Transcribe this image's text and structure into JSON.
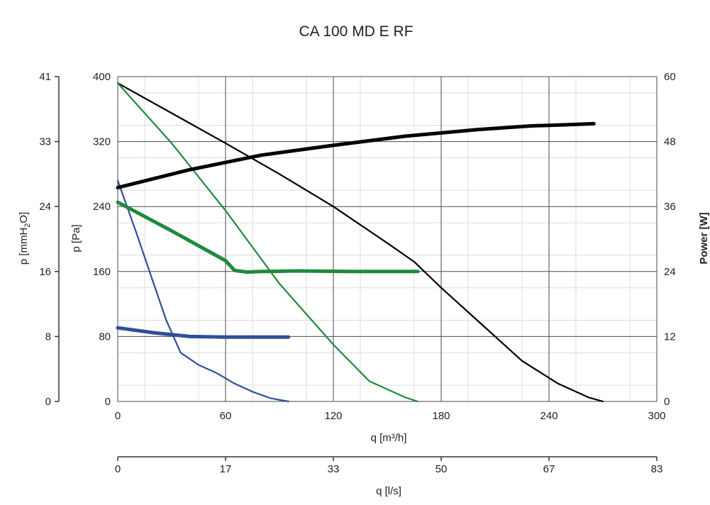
{
  "chart_data": {
    "type": "line",
    "title": "CA 100 MD E RF",
    "grid": true,
    "x_axis": {
      "label": "q [m³/h]",
      "range": [
        0,
        300
      ],
      "ticks": [
        "0",
        "60",
        "120",
        "180",
        "240",
        "300"
      ]
    },
    "x2_axis": {
      "label": "q [l/s]",
      "ticks": [
        "0",
        "17",
        "33",
        "50",
        "67",
        "83"
      ]
    },
    "y_axis": {
      "label": "p [Pa]",
      "range": [
        0,
        400
      ],
      "ticks": [
        "0",
        "80",
        "160",
        "240",
        "320",
        "400"
      ]
    },
    "y_outer_axis": {
      "label_prefix": "p [mmH",
      "label_sub": "2",
      "label_suffix": "O]",
      "ticks": [
        "0",
        "8",
        "16",
        "24",
        "33",
        "41"
      ]
    },
    "y_right_axis": {
      "label": "Power [W]",
      "range": [
        0,
        60
      ],
      "ticks": [
        "0",
        "12",
        "24",
        "36",
        "48",
        "60"
      ]
    },
    "series": [
      {
        "kind": "pressure",
        "color": "#000000",
        "x": [
          0,
          30,
          60,
          90,
          120,
          150,
          165,
          180,
          200,
          225,
          245,
          262,
          270
        ],
        "y": [
          392,
          355,
          318,
          280,
          240,
          195,
          172,
          140,
          100,
          50,
          22,
          5,
          0
        ]
      },
      {
        "kind": "pressure",
        "color": "#1e8a3c",
        "x": [
          0,
          30,
          60,
          90,
          120,
          140,
          160,
          167
        ],
        "y": [
          392,
          318,
          235,
          145,
          70,
          25,
          5,
          0
        ]
      },
      {
        "kind": "pressure",
        "color": "#2e4f9a",
        "x": [
          0,
          10,
          20,
          27,
          35,
          45,
          55,
          65,
          75,
          85,
          95
        ],
        "y": [
          272,
          210,
          145,
          100,
          60,
          45,
          35,
          22,
          12,
          4,
          0
        ]
      },
      {
        "kind": "power",
        "color": "#000000",
        "x": [
          0,
          40,
          80,
          120,
          160,
          200,
          230,
          250,
          265
        ],
        "y": [
          39.5,
          42.8,
          45.5,
          47.3,
          49.0,
          50.2,
          50.9,
          51.1,
          51.3
        ]
      },
      {
        "kind": "power",
        "color": "#1e8a3c",
        "x": [
          0,
          30,
          60,
          65,
          72,
          80,
          100,
          130,
          167
        ],
        "y": [
          36.8,
          31.5,
          26.0,
          24.2,
          23.9,
          24.0,
          24.1,
          24.0,
          24.0
        ]
      },
      {
        "kind": "power",
        "color": "#2e4f9a",
        "x": [
          0,
          20,
          40,
          60,
          80,
          95
        ],
        "y": [
          13.6,
          12.7,
          12.0,
          11.9,
          11.9,
          11.9
        ]
      }
    ]
  }
}
